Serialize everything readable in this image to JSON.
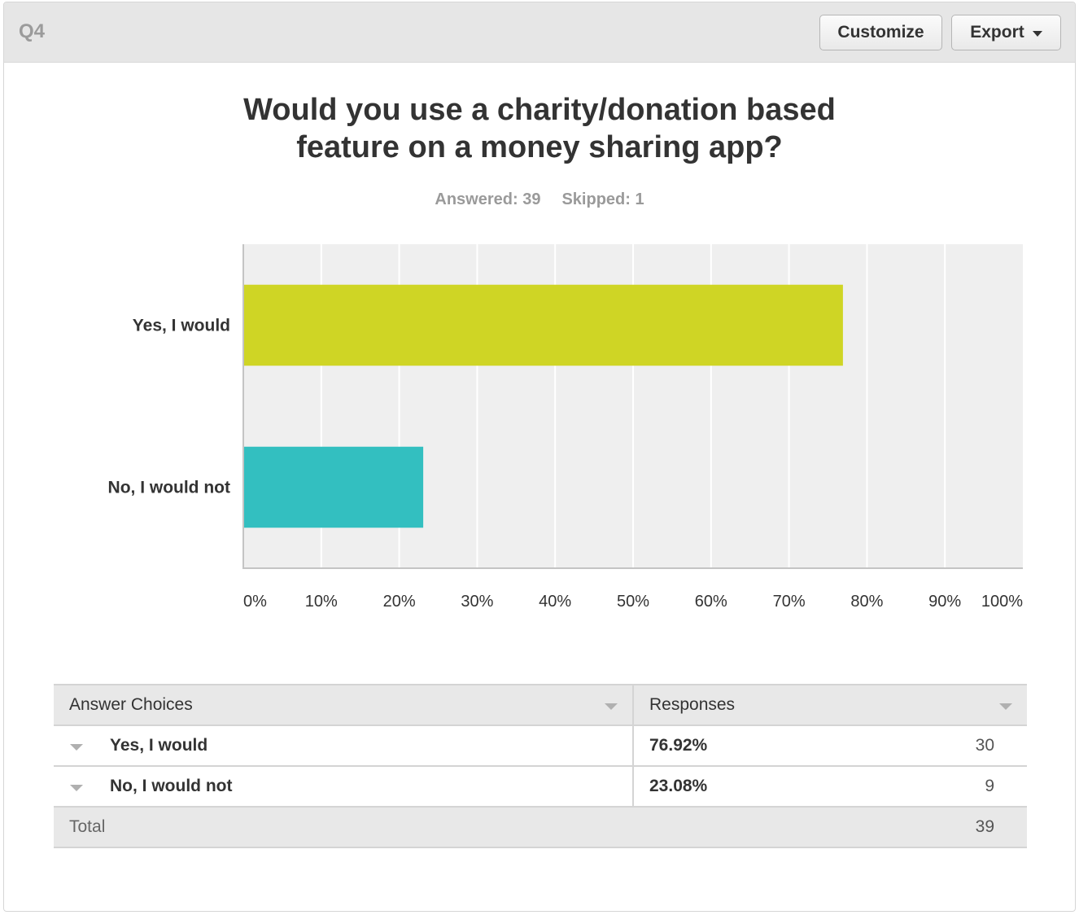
{
  "header": {
    "question_label": "Q4",
    "customize_label": "Customize",
    "export_label": "Export",
    "export_icon": "chevron-down-icon"
  },
  "title_line1": "Would you use a charity/donation based",
  "title_line2": "feature on a money sharing app?",
  "stats": {
    "answered": "Answered: 39",
    "skipped": "Skipped: 1"
  },
  "chart_data": {
    "type": "bar",
    "orientation": "horizontal",
    "title": "Would you use a charity/donation based feature on a money sharing app?",
    "categories": [
      "Yes, I would",
      "No, I would not"
    ],
    "values": [
      76.92,
      23.08
    ],
    "colors": [
      "#cfd525",
      "#33bfc0"
    ],
    "xlim": [
      0,
      100
    ],
    "xticks": [
      "0%",
      "10%",
      "20%",
      "30%",
      "40%",
      "50%",
      "60%",
      "70%",
      "80%",
      "90%",
      "100%"
    ],
    "grid": true,
    "plot_background": "#efefef",
    "legend": "none"
  },
  "table": {
    "headers": {
      "choices": "Answer Choices",
      "responses": "Responses"
    },
    "rows": [
      {
        "label": "Yes, I would",
        "percent": "76.92%",
        "count": "30"
      },
      {
        "label": "No, I would not",
        "percent": "23.08%",
        "count": "9"
      }
    ],
    "total": {
      "label": "Total",
      "count": "39"
    }
  }
}
